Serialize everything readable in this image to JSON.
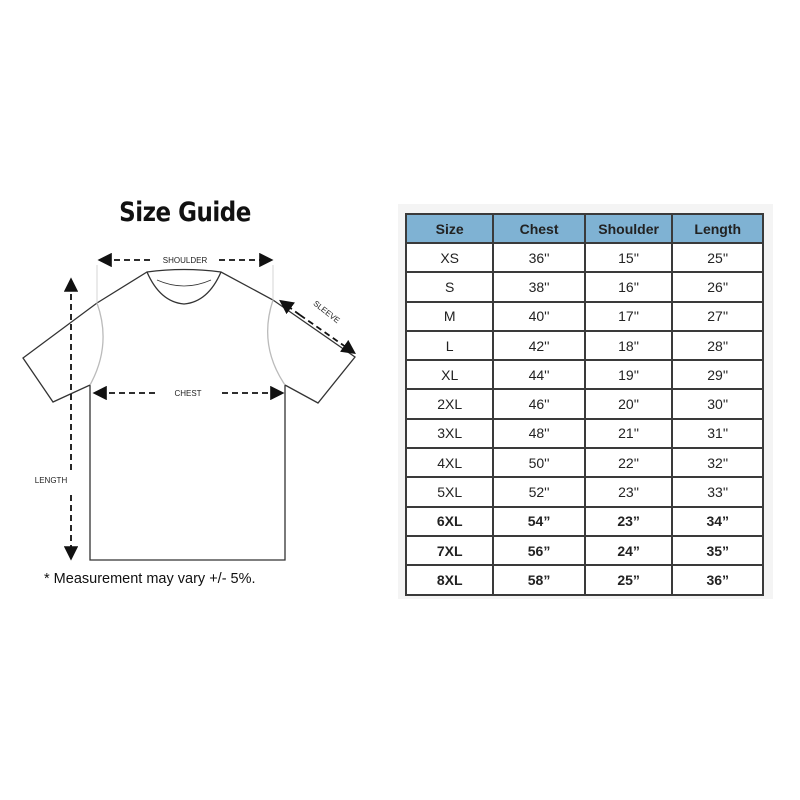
{
  "title": "Size Guide",
  "diagram_labels": {
    "shoulder": "SHOULDER",
    "sleeve": "SLEEVE",
    "chest": "CHEST",
    "length": "LENGTH"
  },
  "footnote": "* Measurement may vary +/- 5%.",
  "table": {
    "headers": [
      "Size",
      "Chest",
      "Shoulder",
      "Length"
    ],
    "header_color": "#7fb2d3",
    "rows": [
      [
        "XS",
        "36''",
        "15''",
        "25''"
      ],
      [
        "S",
        "38''",
        "16''",
        "26''"
      ],
      [
        "M",
        "40''",
        "17''",
        "27''"
      ],
      [
        "L",
        "42''",
        "18''",
        "28''"
      ],
      [
        "XL",
        "44''",
        "19''",
        "29''"
      ],
      [
        "2XL",
        "46''",
        "20''",
        "30''"
      ],
      [
        "3XL",
        "48''",
        "21''",
        "31''"
      ],
      [
        "4XL",
        "50''",
        "22''",
        "32''"
      ],
      [
        "5XL",
        "52''",
        "23''",
        "33''"
      ],
      [
        "6XL",
        "54”",
        "23”",
        "34”"
      ],
      [
        "7XL",
        "56”",
        "24”",
        "35”"
      ],
      [
        "8XL",
        "58”",
        "25”",
        "36”"
      ]
    ]
  }
}
